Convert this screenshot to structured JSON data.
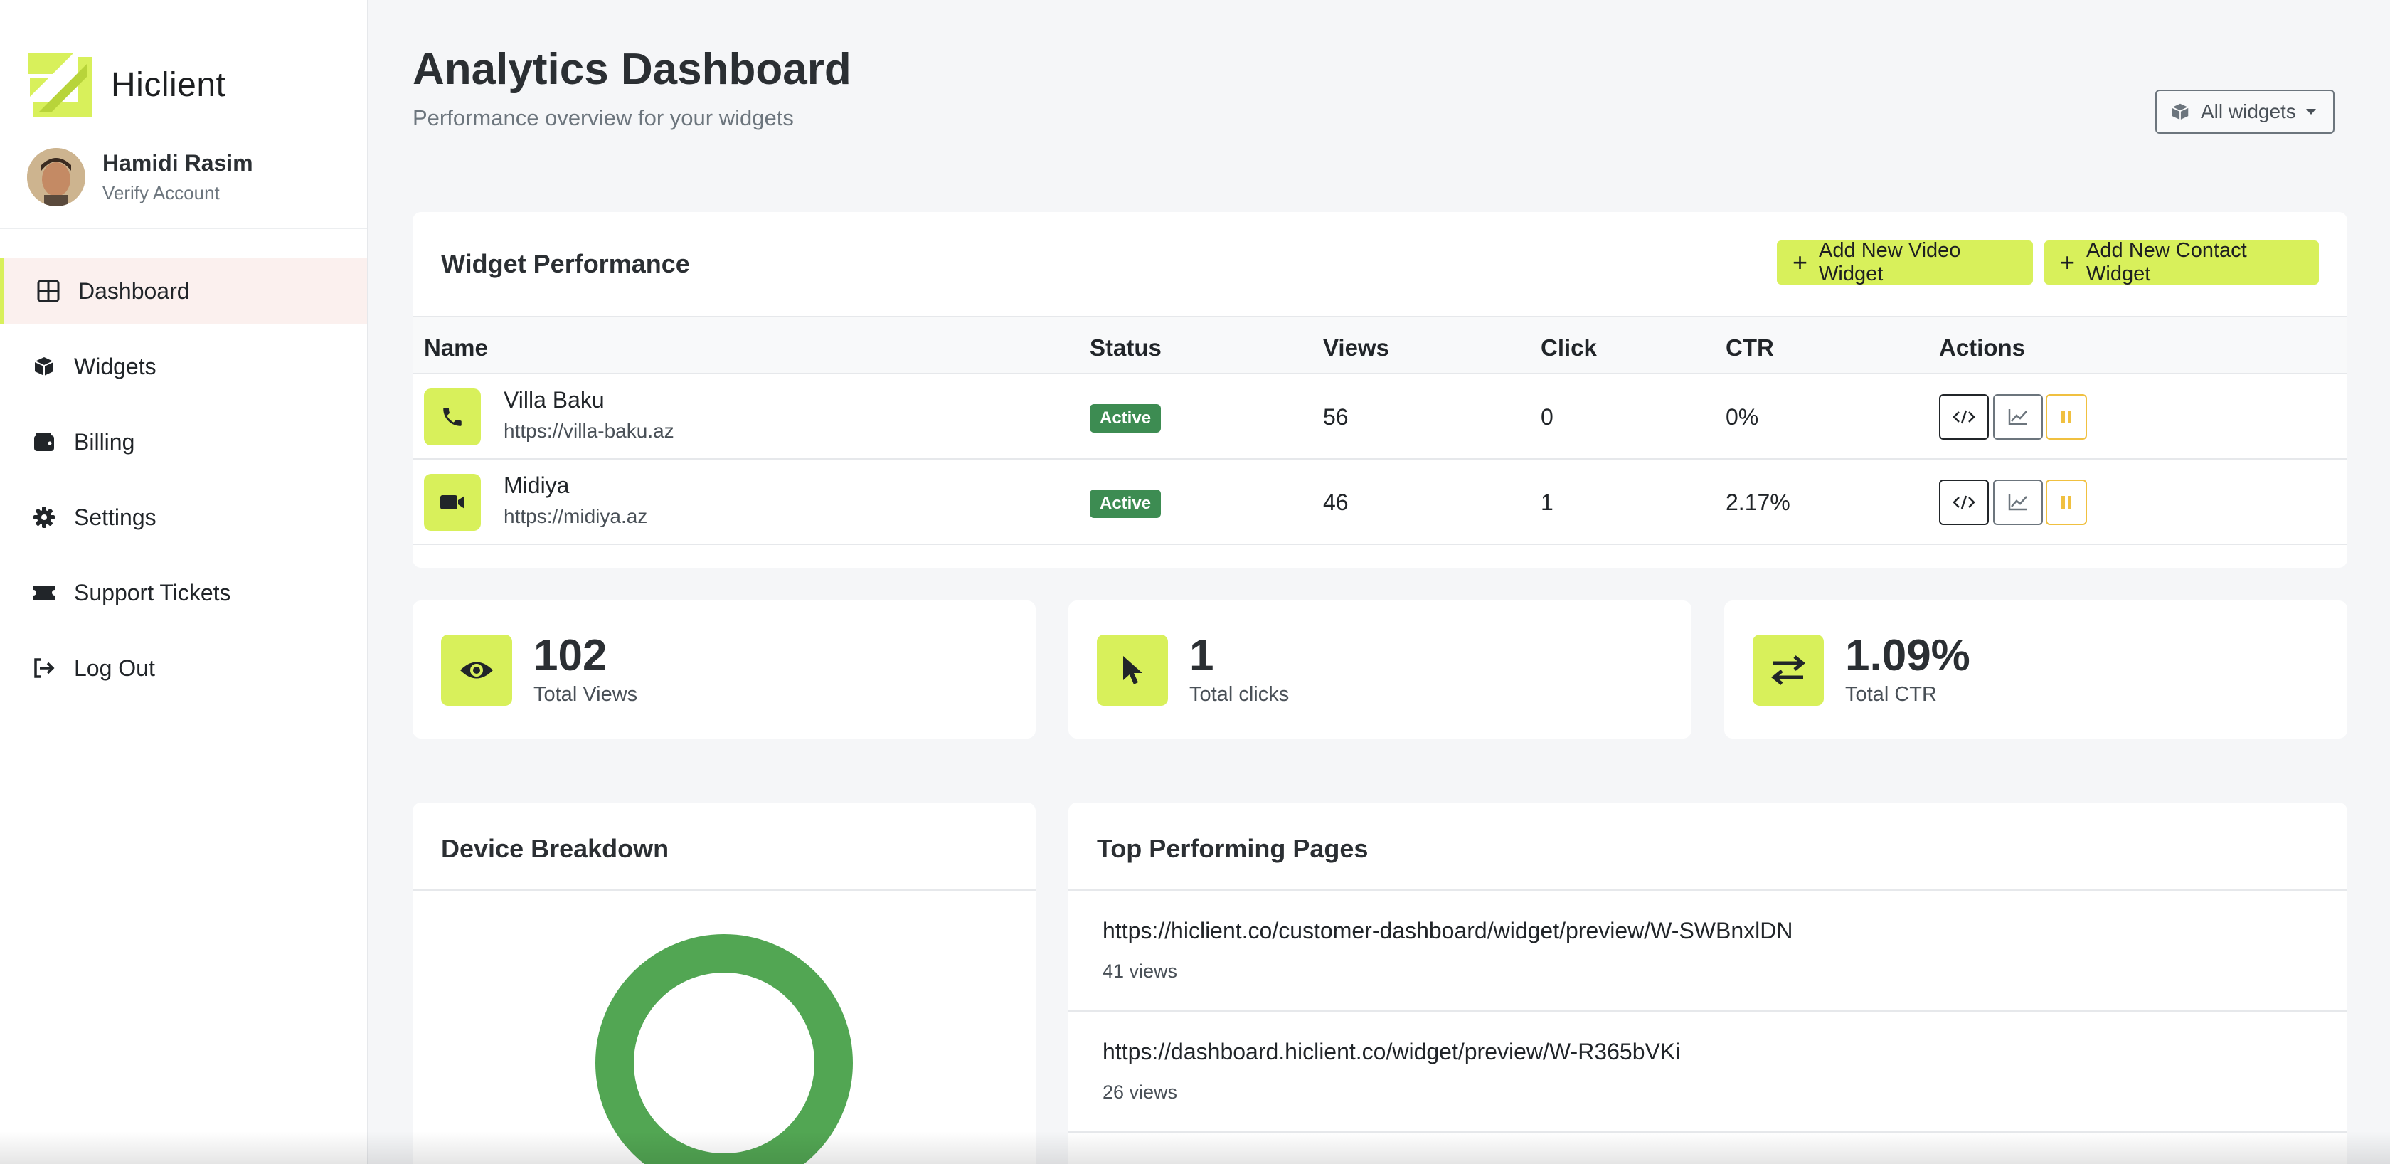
{
  "brand": {
    "name": "Hiclient",
    "accent": "#d8f05b"
  },
  "profile": {
    "name": "Hamidi Rasim",
    "subtitle": "Verify Account"
  },
  "nav": [
    {
      "label": "Dashboard",
      "icon": "grid-icon",
      "active": true
    },
    {
      "label": "Widgets",
      "icon": "cube-icon"
    },
    {
      "label": "Billing",
      "icon": "wallet-icon"
    },
    {
      "label": "Settings",
      "icon": "gear-icon"
    },
    {
      "label": "Support Tickets",
      "icon": "ticket-icon"
    },
    {
      "label": "Log Out",
      "icon": "logout-icon"
    }
  ],
  "header": {
    "title": "Analytics Dashboard",
    "subtitle": "Performance overview for your widgets",
    "filter_label": "All widgets"
  },
  "widget_performance": {
    "title": "Widget Performance",
    "add_video_label": "Add New Video Widget",
    "add_contact_label": "Add New Contact Widget",
    "columns": [
      "Name",
      "Status",
      "Views",
      "Click",
      "CTR",
      "Actions"
    ],
    "rows": [
      {
        "name": "Villa Baku",
        "url": "https://villa-baku.az",
        "status": "Active",
        "views": "56",
        "clicks": "0",
        "ctr": "0%",
        "icon": "phone-icon"
      },
      {
        "name": "Midiya",
        "url": "https://midiya.az",
        "status": "Active",
        "views": "46",
        "clicks": "1",
        "ctr": "2.17%",
        "icon": "video-camera-icon"
      }
    ]
  },
  "stats": [
    {
      "value": "102",
      "label": "Total Views",
      "icon": "eye-icon"
    },
    {
      "value": "1",
      "label": "Total clicks",
      "icon": "cursor-icon"
    },
    {
      "value": "1.09%",
      "label": "Total CTR",
      "icon": "swap-arrows-icon"
    }
  ],
  "device_breakdown": {
    "title": "Device Breakdown",
    "ring_color": "#52a653"
  },
  "top_pages": {
    "title": "Top Performing Pages",
    "items": [
      {
        "url": "https://hiclient.co/customer-dashboard/widget/preview/W-SWBnxlDN",
        "views": "41 views"
      },
      {
        "url": "https://dashboard.hiclient.co/widget/preview/W-R365bVKi",
        "views": "26 views"
      }
    ]
  }
}
